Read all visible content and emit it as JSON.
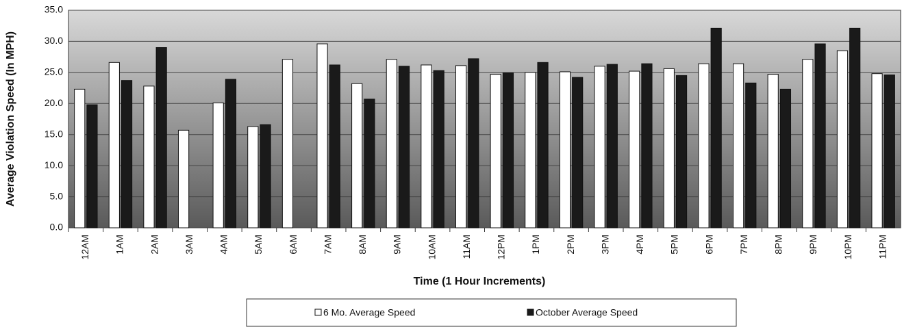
{
  "chart_data": {
    "type": "bar",
    "xlabel": "Time (1 Hour Increments)",
    "ylabel": "Average Violation Speed (In MPH)",
    "categories": [
      "12AM",
      "1AM",
      "2AM",
      "3AM",
      "4AM",
      "5AM",
      "6AM",
      "7AM",
      "8AM",
      "9AM",
      "10AM",
      "11AM",
      "12PM",
      "1PM",
      "2PM",
      "3PM",
      "4PM",
      "5PM",
      "6PM",
      "7PM",
      "8PM",
      "9PM",
      "10PM",
      "11PM"
    ],
    "series": [
      {
        "name": "6 Mo. Average Speed",
        "color": "#ffffff",
        "values": [
          22.3,
          26.6,
          22.8,
          15.7,
          20.1,
          16.3,
          27.1,
          29.6,
          23.2,
          27.1,
          26.2,
          26.1,
          24.7,
          25.0,
          25.1,
          26.0,
          25.2,
          25.6,
          26.4,
          26.4,
          24.7,
          27.1,
          28.5,
          24.8
        ]
      },
      {
        "name": "October Average Speed",
        "color": "#1a1a1a",
        "values": [
          19.8,
          23.7,
          29.0,
          null,
          23.9,
          16.6,
          null,
          26.2,
          20.7,
          26.0,
          25.3,
          27.2,
          24.9,
          26.6,
          24.2,
          26.3,
          26.4,
          24.5,
          32.1,
          23.3,
          22.3,
          29.6,
          32.1,
          24.6
        ]
      }
    ],
    "ylim": [
      0,
      35
    ],
    "yticks": [
      {
        "value": 0,
        "label": "0.0"
      },
      {
        "value": 5,
        "label": "5.0"
      },
      {
        "value": 10,
        "label": "10.0"
      },
      {
        "value": 15,
        "label": "15.0"
      },
      {
        "value": 20,
        "label": "20.0"
      },
      {
        "value": 25,
        "label": "25.0"
      },
      {
        "value": 30,
        "label": "30.0"
      },
      {
        "value": 35,
        "label": "35.0"
      }
    ],
    "grid": true,
    "legend": "bottom"
  }
}
